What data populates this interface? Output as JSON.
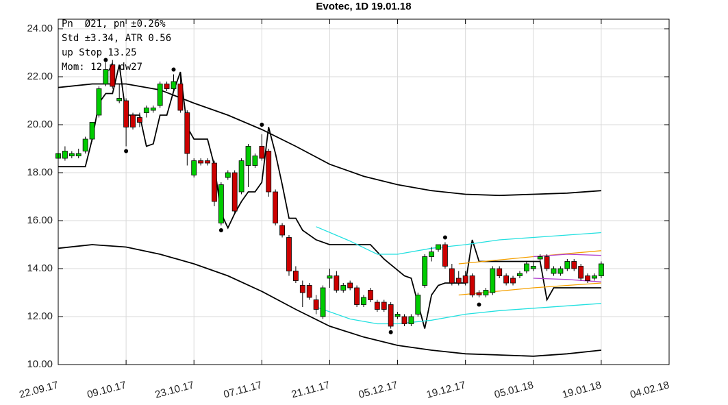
{
  "chart_data": {
    "type": "candlestick",
    "title": "Evotec, 1D 19.01.18",
    "annotations": [
      "Pn  Ø21, pn ±0.26%",
      "Std ±3.34, ATR 0.56",
      "up Stop 13.25",
      "Mom: 12 / dw27"
    ],
    "xlim": [
      0,
      90
    ],
    "xticks": [
      {
        "value": 0,
        "label": "22.09.17"
      },
      {
        "value": 10,
        "label": "09.10.17"
      },
      {
        "value": 20,
        "label": "23.10.17"
      },
      {
        "value": 30,
        "label": "07.11.17"
      },
      {
        "value": 40,
        "label": "21.11.17"
      },
      {
        "value": 50,
        "label": "05.12.17"
      },
      {
        "value": 60,
        "label": "19.12.17"
      },
      {
        "value": 70,
        "label": "05.01.18"
      },
      {
        "value": 80,
        "label": "19.01.18"
      },
      {
        "value": 90,
        "label": "04.02.18"
      }
    ],
    "ylim": [
      10,
      24.4
    ],
    "yticks": [
      {
        "value": 10,
        "label": "10.00"
      },
      {
        "value": 12,
        "label": "12.00"
      },
      {
        "value": 14,
        "label": "14.00"
      },
      {
        "value": 16,
        "label": "16.00"
      },
      {
        "value": 18,
        "label": "18.00"
      },
      {
        "value": 20,
        "label": "20.00"
      },
      {
        "value": 22,
        "label": "22.00"
      },
      {
        "value": 24,
        "label": "24.00"
      }
    ],
    "grid": true,
    "up_color": "#00cc00",
    "down_color": "#cc0000",
    "x": [
      0,
      1,
      2,
      3,
      4,
      5,
      6,
      7,
      8,
      9,
      10,
      11,
      12,
      13,
      14,
      15,
      16,
      17,
      18,
      19,
      20,
      21,
      22,
      23,
      24,
      25,
      26,
      27,
      28,
      29,
      30,
      31,
      32,
      33,
      34,
      35,
      36,
      37,
      38,
      39,
      40,
      41,
      42,
      43,
      44,
      45,
      46,
      47,
      48,
      49,
      50,
      51,
      52,
      53,
      54,
      55,
      56,
      57,
      58,
      59,
      60,
      61,
      62,
      63,
      64,
      65,
      66,
      67,
      68,
      69,
      70,
      71,
      72,
      73,
      74,
      75,
      76,
      77,
      78,
      79,
      80
    ],
    "open": [
      18.6,
      18.6,
      18.7,
      18.7,
      18.9,
      19.4,
      20.4,
      21.7,
      22.5,
      21.0,
      21.0,
      20.4,
      20.3,
      20.5,
      20.6,
      20.8,
      21.7,
      21.5,
      21.7,
      20.5,
      17.9,
      18.5,
      18.5,
      18.4,
      15.9,
      17.8,
      18.0,
      17.2,
      18.3,
      18.3,
      19.1,
      18.9,
      17.2,
      15.8,
      15.3,
      13.9,
      13.3,
      13.3,
      12.7,
      12.0,
      13.6,
      13.7,
      13.1,
      13.4,
      13.2,
      12.5,
      13.1,
      12.6,
      12.6,
      12.5,
      12.0,
      12.0,
      11.7,
      12.1,
      13.3,
      14.5,
      14.8,
      15.0,
      14.0,
      13.6,
      13.7,
      13.7,
      13.0,
      12.9,
      13.0,
      14.0,
      13.7,
      13.6,
      13.7,
      13.9,
      14.0,
      14.4,
      14.5,
      13.8,
      13.8,
      14.0,
      14.3,
      14.1,
      13.7,
      13.6,
      13.7
    ],
    "high": [
      18.9,
      19.1,
      18.9,
      19.0,
      19.5,
      20.1,
      21.6,
      22.6,
      22.7,
      21.7,
      21.1,
      20.5,
      20.5,
      20.8,
      20.8,
      21.8,
      21.8,
      22.1,
      22.2,
      20.6,
      18.6,
      18.6,
      18.6,
      18.5,
      17.6,
      18.1,
      18.1,
      18.6,
      19.2,
      18.8,
      19.6,
      19.0,
      17.3,
      15.9,
      15.4,
      14.1,
      13.5,
      13.4,
      12.9,
      13.3,
      14.0,
      13.9,
      13.4,
      13.5,
      13.3,
      12.9,
      13.2,
      12.7,
      12.7,
      12.6,
      12.2,
      12.1,
      12.1,
      13.0,
      14.6,
      14.9,
      15.0,
      15.1,
      14.2,
      13.9,
      13.9,
      13.8,
      13.1,
      13.2,
      14.1,
      14.1,
      13.8,
      13.7,
      13.9,
      14.3,
      14.3,
      14.6,
      14.6,
      14.1,
      14.1,
      14.4,
      14.4,
      14.2,
      13.8,
      13.8,
      14.3
    ],
    "low": [
      18.5,
      18.5,
      18.6,
      18.6,
      18.8,
      19.3,
      20.3,
      21.6,
      21.5,
      20.9,
      19.1,
      19.8,
      19.9,
      20.3,
      20.5,
      20.7,
      21.4,
      21.4,
      20.5,
      18.3,
      17.8,
      18.3,
      18.3,
      16.6,
      15.8,
      17.7,
      16.3,
      17.1,
      17.4,
      18.2,
      18.5,
      17.0,
      15.8,
      15.3,
      13.7,
      13.4,
      12.4,
      12.7,
      12.1,
      11.9,
      13.2,
      13.0,
      13.0,
      13.1,
      12.4,
      12.4,
      12.6,
      12.2,
      12.2,
      11.5,
      11.9,
      11.6,
      11.6,
      12.0,
      13.2,
      14.3,
      14.7,
      14.0,
      13.3,
      13.3,
      13.3,
      12.8,
      12.8,
      12.8,
      12.9,
      13.6,
      13.3,
      13.3,
      13.6,
      13.8,
      13.9,
      14.3,
      13.9,
      13.7,
      13.7,
      13.9,
      13.9,
      13.5,
      13.4,
      13.5,
      13.6
    ],
    "close": [
      18.8,
      18.9,
      18.8,
      18.8,
      19.4,
      20.1,
      21.5,
      22.3,
      21.6,
      21.1,
      19.9,
      19.9,
      20.1,
      20.7,
      20.7,
      21.7,
      21.5,
      21.8,
      20.6,
      18.8,
      18.5,
      18.4,
      18.4,
      16.8,
      17.5,
      18.0,
      16.4,
      18.5,
      19.1,
      18.7,
      18.6,
      17.2,
      15.9,
      15.4,
      13.9,
      13.5,
      13.0,
      12.8,
      12.3,
      13.2,
      13.7,
      13.1,
      13.3,
      13.2,
      12.5,
      12.8,
      12.7,
      12.3,
      12.3,
      11.6,
      12.1,
      11.7,
      12.0,
      12.9,
      14.5,
      14.7,
      15.0,
      14.1,
      13.4,
      13.4,
      13.4,
      12.9,
      12.9,
      13.1,
      14.0,
      13.7,
      13.4,
      13.4,
      13.8,
      14.2,
      14.1,
      14.5,
      14.0,
      14.0,
      14.0,
      14.3,
      14.0,
      13.6,
      13.5,
      13.7,
      14.2
    ],
    "lines": [
      {
        "color": "#000000",
        "x": [
          0,
          5,
          10,
          15,
          20,
          25,
          30,
          35,
          40,
          45,
          50,
          55,
          60,
          65,
          70,
          75,
          80
        ],
        "values": [
          21.55,
          21.7,
          21.7,
          21.45,
          20.9,
          20.4,
          19.8,
          19.1,
          18.35,
          17.85,
          17.5,
          17.25,
          17.1,
          17.05,
          17.1,
          17.15,
          17.25
        ]
      },
      {
        "color": "#000000",
        "x": [
          0,
          5,
          10,
          15,
          20,
          25,
          30,
          35,
          40,
          45,
          50,
          55,
          60,
          65,
          70,
          75,
          80
        ],
        "values": [
          14.85,
          15.0,
          14.9,
          14.6,
          14.2,
          13.7,
          13.05,
          12.3,
          11.6,
          11.15,
          10.8,
          10.6,
          10.45,
          10.4,
          10.35,
          10.45,
          10.6
        ]
      },
      {
        "color": "#000000",
        "x": [
          0,
          4,
          5,
          6,
          7,
          8,
          9,
          10,
          12,
          13,
          14,
          15,
          16,
          17,
          18,
          19,
          20,
          22,
          23,
          24,
          25,
          26,
          27,
          28,
          29,
          30,
          31,
          32,
          33,
          34,
          35,
          36,
          38,
          40,
          46,
          48,
          51,
          52,
          54,
          55,
          56,
          57,
          60,
          61,
          62,
          71,
          72,
          73,
          80
        ],
        "values": [
          18.25,
          18.25,
          19.4,
          20.9,
          21.3,
          21.3,
          22.5,
          20.4,
          20.4,
          19.1,
          19.2,
          20.4,
          20.4,
          21.4,
          22.2,
          19.9,
          19.4,
          19.4,
          18.3,
          16.3,
          15.7,
          16.3,
          16.8,
          17.2,
          17.2,
          17.6,
          19.9,
          18.8,
          17.5,
          16.1,
          16.1,
          15.6,
          15.2,
          15.0,
          15.0,
          14.4,
          13.7,
          13.6,
          11.5,
          12.9,
          13.3,
          13.4,
          13.4,
          15.2,
          14.3,
          14.3,
          12.7,
          13.2,
          13.2
        ]
      },
      {
        "color": "#22e0e0",
        "x": [
          38,
          43,
          47,
          50,
          55,
          60,
          65,
          70,
          80
        ],
        "values": [
          15.75,
          15.15,
          14.6,
          14.6,
          14.85,
          15.0,
          15.2,
          15.3,
          15.5
        ]
      },
      {
        "color": "#22e0e0",
        "x": [
          38,
          43,
          47,
          50,
          55,
          60,
          65,
          70,
          80
        ],
        "values": [
          12.4,
          11.9,
          11.7,
          11.7,
          11.85,
          12.1,
          12.25,
          12.35,
          12.55
        ]
      },
      {
        "color": "#f5a000",
        "x": [
          59,
          70,
          80
        ],
        "values": [
          14.2,
          14.5,
          14.75
        ]
      },
      {
        "color": "#f5a000",
        "x": [
          59,
          70,
          80
        ],
        "values": [
          12.9,
          13.2,
          13.4
        ]
      },
      {
        "color": "#b040d0",
        "x": [
          70,
          75,
          80
        ],
        "values": [
          14.5,
          14.6,
          14.55
        ]
      },
      {
        "color": "#b040d0",
        "x": [
          70,
          75,
          80
        ],
        "values": [
          13.6,
          13.55,
          13.45
        ]
      }
    ],
    "markers": {
      "color": "#000000",
      "x": [
        7,
        10,
        17,
        24,
        30,
        49,
        57,
        62
      ],
      "values": [
        22.7,
        18.9,
        22.3,
        15.6,
        20.0,
        11.35,
        15.3,
        12.5
      ]
    }
  }
}
